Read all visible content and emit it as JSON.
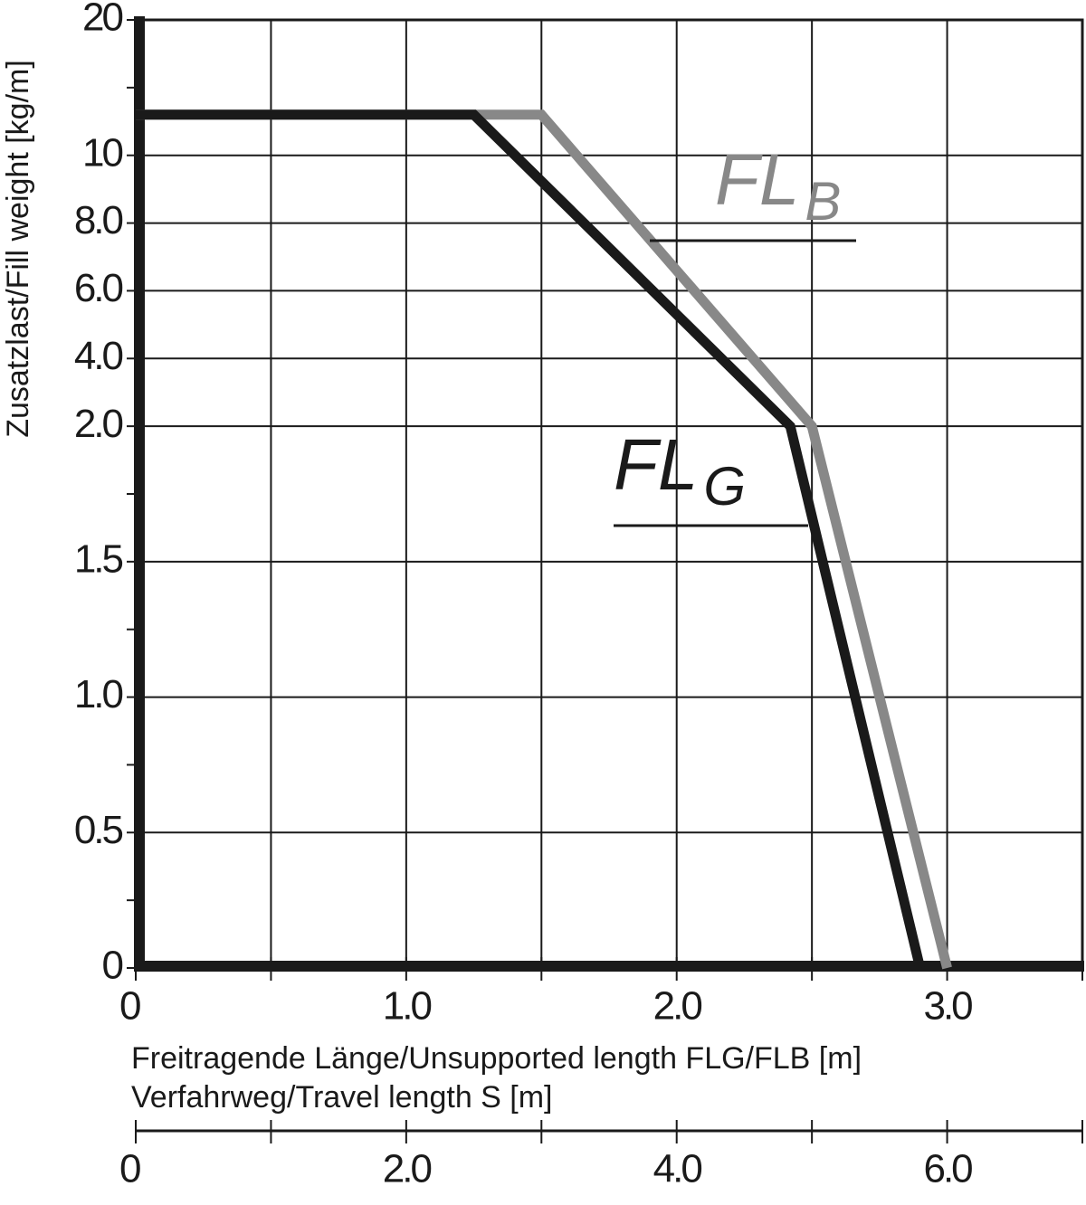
{
  "chart_data": {
    "type": "line",
    "y_label": "Zusatzlast/Fill weight [kg/m]",
    "x_label": "Freitragende Länge/Unsupported length FLG/FLB [m]",
    "x2_label": "Verfahrweg/Travel length S [m]",
    "xlim": [
      0,
      3.5
    ],
    "xticks": [
      0,
      {
        "value": 1,
        "label": "1.0"
      },
      {
        "value": 2,
        "label": "2.0"
      },
      {
        "value": 3,
        "label": "3.0"
      }
    ],
    "x_minor_ticks": [
      0.5,
      1.5,
      2.5,
      3.5
    ],
    "x2lim": [
      0,
      7
    ],
    "x2ticks": [
      0,
      {
        "value": 2,
        "label": "2.0"
      },
      {
        "value": 4,
        "label": "4.0"
      },
      {
        "value": 6,
        "label": "6.0"
      }
    ],
    "x2_minor_ticks": [
      1,
      3,
      5,
      7
    ],
    "ylim": [
      0,
      20
    ],
    "yticks": [
      0,
      0.5,
      {
        "value": 1,
        "label": "1.0"
      },
      1.5,
      {
        "value": 2,
        "label": "2.0"
      },
      {
        "value": 4,
        "label": "4.0"
      },
      {
        "value": 6,
        "label": "6.0"
      },
      {
        "value": 8,
        "label": "8.0"
      },
      10,
      20
    ],
    "y_minor_ticks": [
      0.25,
      0.75,
      1.25,
      1.75,
      15
    ],
    "grid": true,
    "series": [
      {
        "label_main": "FL",
        "label_sub": "B",
        "color": "#888888",
        "x": [
          0,
          1.5,
          2.5,
          3.0
        ],
        "values": [
          13,
          13,
          2.0,
          0
        ]
      },
      {
        "label_main": "FL",
        "label_sub": "G",
        "color": "#1a1a1a",
        "x": [
          0,
          1.25,
          2.42,
          2.9
        ],
        "values": [
          13,
          13,
          2.0,
          0
        ]
      }
    ]
  }
}
